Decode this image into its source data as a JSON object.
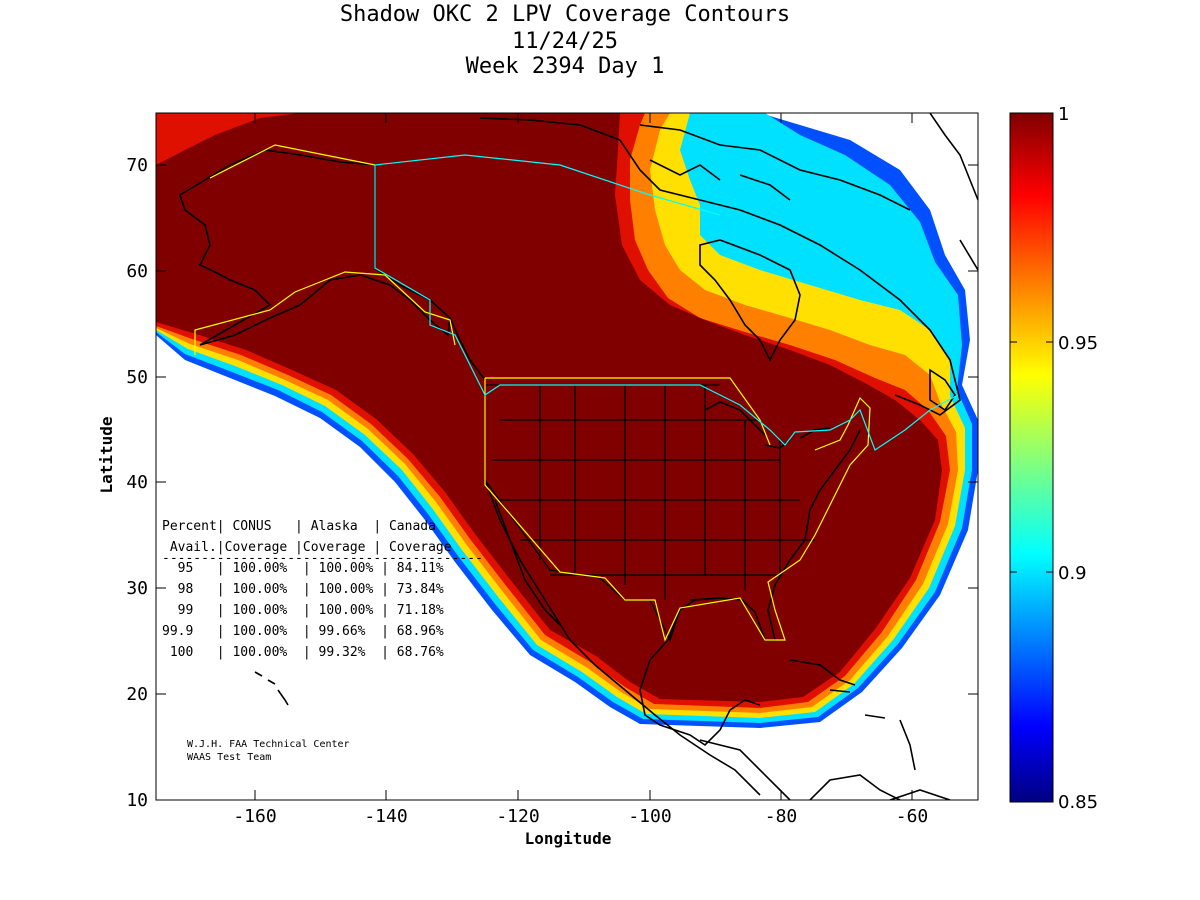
{
  "title": {
    "line1": "Shadow OKC 2 LPV Coverage Contours",
    "line2": "11/24/25",
    "line3": "Week 2394 Day 1"
  },
  "axes": {
    "xlabel": "Longitude",
    "ylabel": "Latitude",
    "xlim": [
      -175,
      -50
    ],
    "ylim": [
      10,
      75
    ],
    "xticks": [
      "-160",
      "-140",
      "-120",
      "-100",
      "-80",
      "-60"
    ],
    "yticks": [
      "10",
      "20",
      "30",
      "40",
      "50",
      "60",
      "70"
    ]
  },
  "colorbar": {
    "min": 0.85,
    "max": 1,
    "ticks": [
      "1",
      "0.95",
      "0.9",
      "0.85"
    ],
    "colormap": "jet"
  },
  "table": {
    "header1": "Percent| CONUS   | Alaska  | Canada",
    "header2": " Avail.|Coverage |Coverage | Coverage",
    "divider": "-----------------------------------------",
    "rows": [
      "  95   | 100.00%  | 100.00% | 84.11%",
      "  98   | 100.00%  | 100.00% | 73.84%",
      "  99   | 100.00%  | 100.00% | 71.18%",
      "99.9   | 100.00%  | 99.66%  | 68.96%",
      " 100   | 100.00%  | 99.32%  | 68.76%"
    ]
  },
  "credit": {
    "line1": "W.J.H. FAA Technical Center",
    "line2": "WAAS Test Team"
  },
  "colors": {
    "full_coverage": "#800000",
    "coastline": "#000000",
    "fir_boundary_yellow": "#ffff00",
    "fir_boundary_cyan": "#00ffff"
  }
}
